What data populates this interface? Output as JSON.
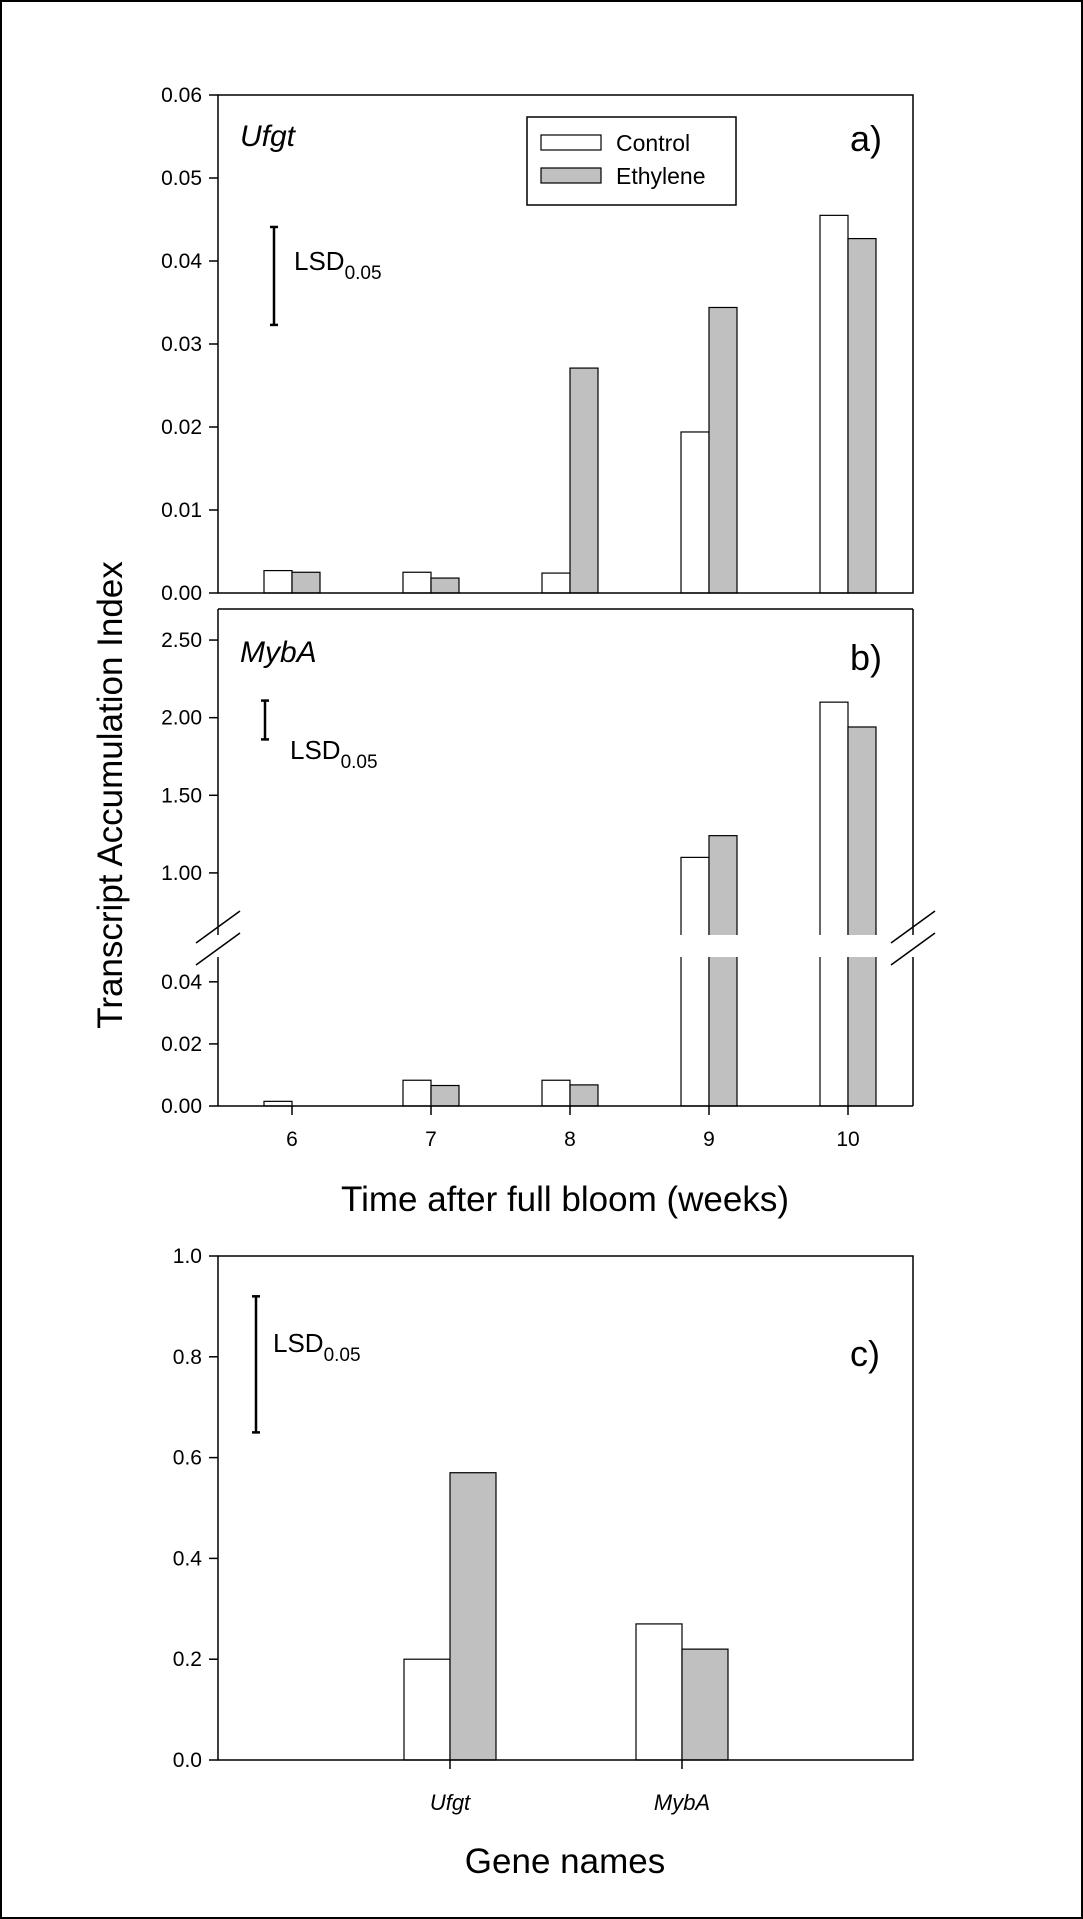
{
  "colors": {
    "control": "#ffffff",
    "ethylene": "#c0c0c0",
    "stroke": "#000000"
  },
  "shared": {
    "ylabel": "Transcript Accumulation Index",
    "legend": [
      "Control",
      "Ethylene"
    ]
  },
  "chart_data": [
    {
      "type": "bar",
      "panel_label": "a)",
      "title": "Ufgt",
      "categories": [
        "6",
        "7",
        "8",
        "9",
        "10"
      ],
      "series": [
        {
          "name": "Control",
          "values": [
            0.0027,
            0.0025,
            0.0024,
            0.0194,
            0.0455
          ]
        },
        {
          "name": "Ethylene",
          "values": [
            0.0025,
            0.0018,
            0.0271,
            0.0344,
            0.0427
          ]
        }
      ],
      "ylim": [
        0,
        0.06
      ],
      "yticks": [
        "0.00",
        "0.01",
        "0.02",
        "0.03",
        "0.04",
        "0.05",
        "0.06"
      ],
      "lsd": {
        "label": "LSD",
        "sub": "0.05",
        "low": 0.0323,
        "high": 0.0441
      },
      "legend_position": "top-center"
    },
    {
      "type": "bar",
      "panel_label": "b)",
      "title": "MybA",
      "categories": [
        "6",
        "7",
        "8",
        "9",
        "10"
      ],
      "series": [
        {
          "name": "Control",
          "values": [
            0.0015,
            0.0083,
            0.0083,
            1.1,
            2.1
          ]
        },
        {
          "name": "Ethylene",
          "values": [
            0.0,
            0.0066,
            0.0068,
            1.24,
            1.94
          ]
        }
      ],
      "broken_axis": {
        "lower": [
          0,
          0.048
        ],
        "upper": [
          0.6,
          2.7
        ]
      },
      "yticks_lower": [
        "0.00",
        "0.02",
        "0.04"
      ],
      "yticks_upper": [
        "1.00",
        "1.50",
        "2.00",
        "2.50"
      ],
      "lsd": {
        "label": "LSD",
        "sub": "0.05",
        "low": 1.86,
        "high": 2.11
      },
      "xlabel": "Time after full bloom (weeks)"
    },
    {
      "type": "bar",
      "panel_label": "c)",
      "categories": [
        "Ufgt",
        "MybA"
      ],
      "series": [
        {
          "name": "Control",
          "values": [
            0.2,
            0.27
          ]
        },
        {
          "name": "Ethylene",
          "values": [
            0.57,
            0.22
          ]
        }
      ],
      "ylim": [
        0,
        1.0
      ],
      "yticks": [
        "0.0",
        "0.2",
        "0.4",
        "0.6",
        "0.8",
        "1.0"
      ],
      "lsd": {
        "label": "LSD",
        "sub": "0.05",
        "low": 0.65,
        "high": 0.92
      },
      "xlabel": "Gene names"
    }
  ]
}
